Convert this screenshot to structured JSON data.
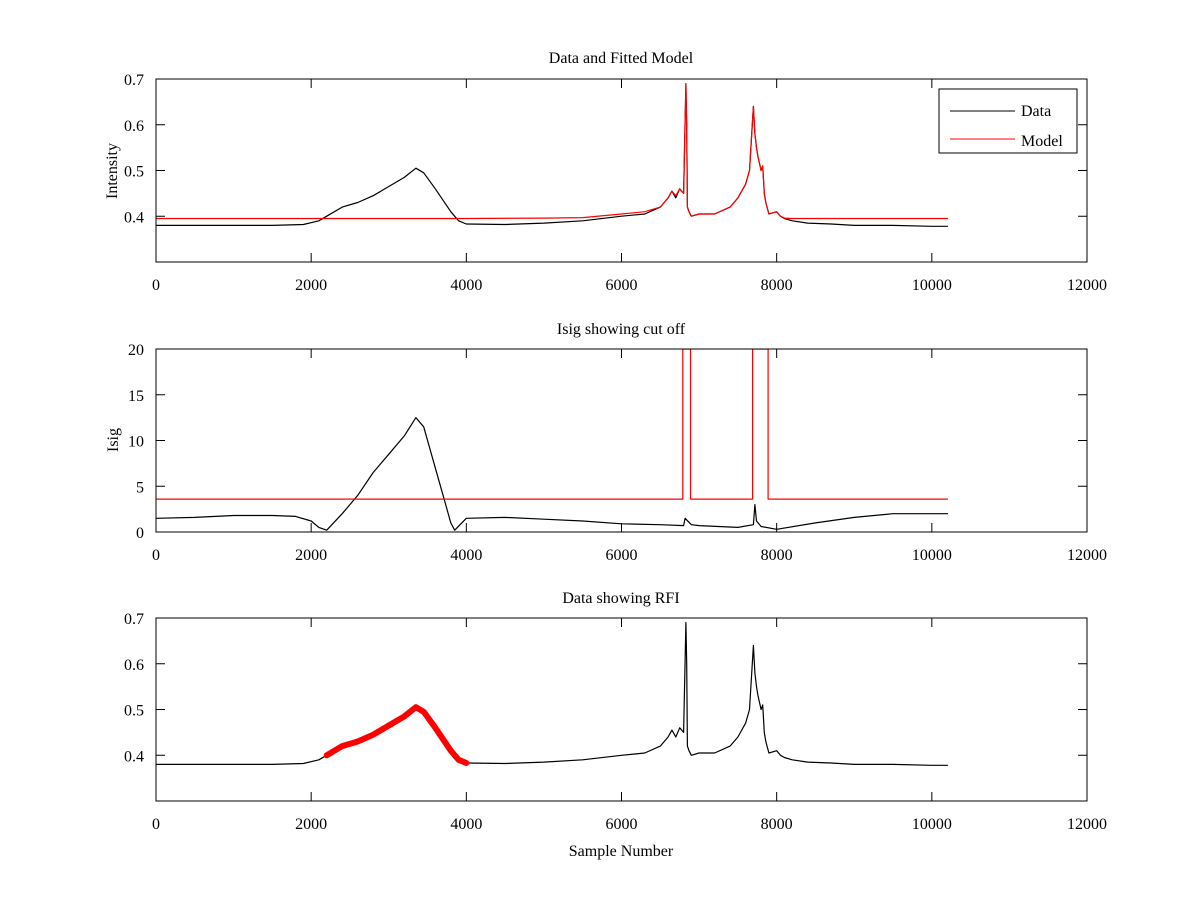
{
  "figure": {
    "colors": {
      "data": "#000000",
      "model": "#ff0000",
      "rfi": "#ff0000",
      "axes": "#000000"
    }
  },
  "chart_data": [
    {
      "type": "line",
      "title": "Data and Fitted Model",
      "xlabel": "",
      "ylabel": "Intensity",
      "xlim": [
        0,
        12000
      ],
      "ylim": [
        0.3,
        0.7
      ],
      "xticks": [
        0,
        2000,
        4000,
        6000,
        8000,
        10000,
        12000
      ],
      "yticks": [
        0.4,
        0.5,
        0.6,
        0.7
      ],
      "grid": false,
      "legend": {
        "placement": "top-right",
        "entries": [
          "Data",
          "Model"
        ]
      },
      "series": [
        {
          "name": "Data",
          "color": "#000000",
          "x": [
            0,
            500,
            1000,
            1500,
            1900,
            2100,
            2200,
            2400,
            2600,
            2800,
            3000,
            3200,
            3350,
            3450,
            3600,
            3800,
            3900,
            4000,
            4500,
            5000,
            5500,
            6000,
            6300,
            6500,
            6600,
            6650,
            6700,
            6750,
            6800,
            6830,
            6840,
            6850,
            6870,
            6900,
            7000,
            7200,
            7400,
            7500,
            7600,
            7650,
            7700,
            7720,
            7740,
            7760,
            7800,
            7820,
            7840,
            7860,
            7900,
            8000,
            8050,
            8100,
            8200,
            8400,
            8700,
            9000,
            9500,
            10000,
            10200
          ],
          "y": [
            0.38,
            0.38,
            0.38,
            0.38,
            0.382,
            0.39,
            0.4,
            0.42,
            0.43,
            0.445,
            0.465,
            0.485,
            0.505,
            0.495,
            0.46,
            0.41,
            0.39,
            0.383,
            0.382,
            0.385,
            0.39,
            0.4,
            0.405,
            0.42,
            0.44,
            0.455,
            0.44,
            0.46,
            0.45,
            0.69,
            0.6,
            0.42,
            0.41,
            0.4,
            0.405,
            0.405,
            0.42,
            0.44,
            0.47,
            0.5,
            0.64,
            0.58,
            0.55,
            0.53,
            0.5,
            0.51,
            0.45,
            0.43,
            0.405,
            0.41,
            0.4,
            0.395,
            0.39,
            0.385,
            0.383,
            0.38,
            0.38,
            0.378,
            0.378
          ]
        },
        {
          "name": "Model",
          "color": "#ff0000",
          "x": [
            0,
            4000,
            5000,
            5500,
            6000,
            6300,
            6500,
            6600,
            6650,
            6700,
            6750,
            6800,
            6830,
            6840,
            6850,
            6870,
            6900,
            7000,
            7200,
            7400,
            7500,
            7600,
            7650,
            7700,
            7720,
            7740,
            7760,
            7800,
            7820,
            7840,
            7860,
            7900,
            8000,
            8050,
            8100,
            8200,
            10200
          ],
          "y": [
            0.395,
            0.395,
            0.396,
            0.397,
            0.405,
            0.41,
            0.42,
            0.44,
            0.455,
            0.445,
            0.46,
            0.45,
            0.69,
            0.6,
            0.42,
            0.41,
            0.4,
            0.405,
            0.405,
            0.42,
            0.44,
            0.47,
            0.5,
            0.64,
            0.58,
            0.55,
            0.53,
            0.5,
            0.51,
            0.45,
            0.43,
            0.405,
            0.41,
            0.4,
            0.396,
            0.395,
            0.395
          ]
        }
      ]
    },
    {
      "type": "line",
      "title": "Isig showing cut off",
      "xlabel": "",
      "ylabel": "Isig",
      "xlim": [
        0,
        12000
      ],
      "ylim": [
        0,
        20
      ],
      "xticks": [
        0,
        2000,
        4000,
        6000,
        8000,
        10000,
        12000
      ],
      "yticks": [
        0,
        5,
        10,
        15,
        20
      ],
      "grid": false,
      "series": [
        {
          "color": "#000000",
          "x": [
            0,
            500,
            1000,
            1500,
            1800,
            2000,
            2100,
            2200,
            2400,
            2600,
            2800,
            3000,
            3200,
            3350,
            3450,
            3600,
            3700,
            3800,
            3850,
            4000,
            4500,
            5000,
            5500,
            6000,
            6500,
            6800,
            6820,
            6900,
            7000,
            7500,
            7700,
            7720,
            7740,
            7800,
            8000,
            8500,
            9000,
            9500,
            10000,
            10200
          ],
          "y": [
            1.5,
            1.6,
            1.8,
            1.8,
            1.7,
            1.2,
            0.5,
            0.2,
            2,
            4,
            6.5,
            8.5,
            10.5,
            12.5,
            11.5,
            7,
            4,
            1,
            0.2,
            1.5,
            1.6,
            1.4,
            1.2,
            0.9,
            0.8,
            0.7,
            1.5,
            0.8,
            0.7,
            0.5,
            0.8,
            3,
            1.2,
            0.6,
            0.3,
            1,
            1.6,
            2,
            2,
            2
          ]
        },
        {
          "color": "#ff0000",
          "x": [
            0,
            6790,
            6790,
            6890,
            6890,
            7690,
            7690,
            7890,
            7890,
            10200
          ],
          "y": [
            3.6,
            3.6,
            20,
            20,
            3.6,
            3.6,
            20,
            20,
            3.6,
            3.6
          ]
        }
      ]
    },
    {
      "type": "line",
      "title": "Data showing RFI",
      "xlabel": "Sample Number",
      "ylabel": "",
      "xlim": [
        0,
        12000
      ],
      "ylim": [
        0.3,
        0.7
      ],
      "xticks": [
        0,
        2000,
        4000,
        6000,
        8000,
        10000,
        12000
      ],
      "yticks": [
        0.4,
        0.5,
        0.6,
        0.7
      ],
      "grid": false,
      "series": [
        {
          "color": "#000000",
          "x": [
            0,
            500,
            1000,
            1500,
            1900,
            2100,
            2200,
            2400,
            2600,
            2800,
            3000,
            3200,
            3350,
            3450,
            3600,
            3800,
            3900,
            4000,
            4500,
            5000,
            5500,
            6000,
            6300,
            6500,
            6600,
            6650,
            6700,
            6750,
            6800,
            6830,
            6840,
            6850,
            6870,
            6900,
            7000,
            7200,
            7400,
            7500,
            7600,
            7650,
            7700,
            7720,
            7740,
            7760,
            7800,
            7820,
            7840,
            7860,
            7900,
            8000,
            8050,
            8100,
            8200,
            8400,
            8700,
            9000,
            9500,
            10000,
            10200
          ],
          "y": [
            0.38,
            0.38,
            0.38,
            0.38,
            0.382,
            0.39,
            0.4,
            0.42,
            0.43,
            0.445,
            0.465,
            0.485,
            0.505,
            0.495,
            0.46,
            0.41,
            0.39,
            0.383,
            0.382,
            0.385,
            0.39,
            0.4,
            0.405,
            0.42,
            0.44,
            0.455,
            0.44,
            0.46,
            0.45,
            0.69,
            0.6,
            0.42,
            0.41,
            0.4,
            0.405,
            0.405,
            0.42,
            0.44,
            0.47,
            0.5,
            0.64,
            0.58,
            0.55,
            0.53,
            0.5,
            0.51,
            0.45,
            0.43,
            0.405,
            0.41,
            0.4,
            0.395,
            0.39,
            0.385,
            0.383,
            0.38,
            0.38,
            0.378,
            0.378
          ]
        },
        {
          "color": "#ff0000",
          "x": [
            2200,
            2400,
            2600,
            2800,
            3000,
            3200,
            3350,
            3450,
            3600,
            3800,
            3900,
            4000
          ],
          "y": [
            0.4,
            0.42,
            0.43,
            0.445,
            0.465,
            0.485,
            0.505,
            0.495,
            0.46,
            0.41,
            0.39,
            0.383
          ]
        }
      ]
    }
  ]
}
